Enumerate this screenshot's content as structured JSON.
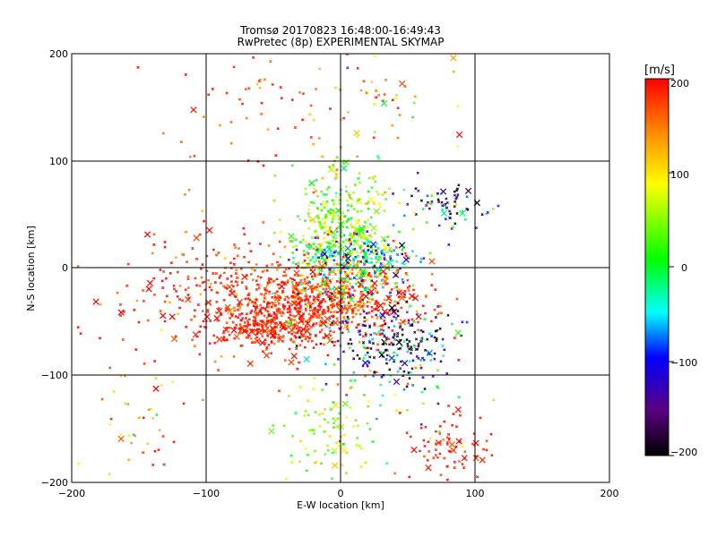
{
  "chart_data": {
    "type": "scatter",
    "title": "Tromsø 20170823 16:48:00-16:49:43",
    "subtitle": "RwPretec (8p) EXPERIMENTAL SKYMAP",
    "xlabel": "E-W location [km]",
    "ylabel": "N-S location [km]",
    "xlim": [
      -200,
      200
    ],
    "ylim": [
      -200,
      200
    ],
    "x_ticks": [
      -200,
      -100,
      0,
      100,
      200
    ],
    "y_ticks": [
      -200,
      -100,
      0,
      100,
      200
    ],
    "x_tick_labels": [
      "−200",
      "−100",
      "0",
      "100",
      "200"
    ],
    "y_tick_labels": [
      "−200",
      "−100",
      "0",
      "100",
      "200"
    ],
    "grid": true,
    "colorbar": {
      "label": "[m/s]",
      "range": [
        -200,
        200
      ],
      "ticks": [
        200,
        100,
        0,
        -100,
        -200
      ],
      "tick_labels": [
        "200",
        "100",
        "0",
        "−100",
        "−200"
      ],
      "colormap": [
        "#000000",
        "#5a0080",
        "#0000ff",
        "#00ffff",
        "#00ff00",
        "#ffff00",
        "#ff8800",
        "#ff0000"
      ]
    },
    "clusters": [
      {
        "cx": -10,
        "cy": -30,
        "sx": 35,
        "sy": 18,
        "n": 700,
        "vmean": 185,
        "vsd": 25
      },
      {
        "cx": -55,
        "cy": -55,
        "sx": 20,
        "sy": 12,
        "n": 250,
        "vmean": 190,
        "vsd": 20
      },
      {
        "cx": 0,
        "cy": 30,
        "sx": 20,
        "sy": 30,
        "n": 450,
        "vmean": 50,
        "vsd": 40
      },
      {
        "cx": 10,
        "cy": 5,
        "sx": 25,
        "sy": 15,
        "n": 200,
        "vmean": -60,
        "vsd": 60
      },
      {
        "cx": -90,
        "cy": -20,
        "sx": 40,
        "sy": 30,
        "n": 250,
        "vmean": 185,
        "vsd": 30
      },
      {
        "cx": 40,
        "cy": -70,
        "sx": 25,
        "sy": 20,
        "n": 220,
        "vmean": -150,
        "vsd": 90
      },
      {
        "cx": 80,
        "cy": 60,
        "sx": 15,
        "sy": 10,
        "n": 70,
        "vmean": -130,
        "vsd": 100
      },
      {
        "cx": -10,
        "cy": -150,
        "sx": 20,
        "sy": 25,
        "n": 90,
        "vmean": 60,
        "vsd": 40
      },
      {
        "cx": 80,
        "cy": -170,
        "sx": 15,
        "sy": 15,
        "n": 70,
        "vmean": 190,
        "vsd": 15
      },
      {
        "cx": -45,
        "cy": 150,
        "sx": 45,
        "sy": 40,
        "n": 80,
        "vmean": 180,
        "vsd": 35
      },
      {
        "cx": 40,
        "cy": 150,
        "sx": 30,
        "sy": 30,
        "n": 35,
        "vmean": 110,
        "vsd": 80
      },
      {
        "cx": -150,
        "cy": -140,
        "sx": 15,
        "sy": 30,
        "n": 40,
        "vmean": 140,
        "vsd": 80
      },
      {
        "cx": 40,
        "cy": -120,
        "sx": 30,
        "sy": 30,
        "n": 50,
        "vmean": 50,
        "vsd": 120
      }
    ]
  }
}
